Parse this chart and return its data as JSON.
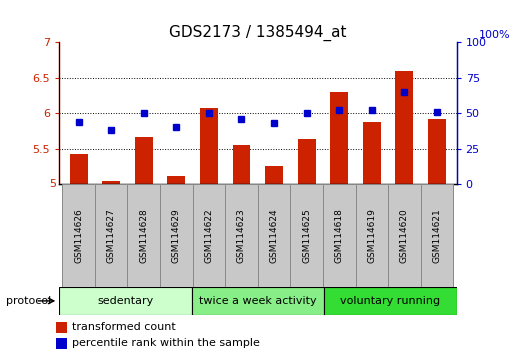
{
  "title": "GDS2173 / 1385494_at",
  "samples": [
    "GSM114626",
    "GSM114627",
    "GSM114628",
    "GSM114629",
    "GSM114622",
    "GSM114623",
    "GSM114624",
    "GSM114625",
    "GSM114618",
    "GSM114619",
    "GSM114620",
    "GSM114621"
  ],
  "red_values": [
    5.42,
    5.04,
    5.67,
    5.12,
    6.08,
    5.55,
    5.25,
    5.63,
    6.3,
    5.87,
    6.6,
    5.92
  ],
  "blue_values": [
    44,
    38,
    50,
    40,
    50,
    46,
    43,
    50,
    52,
    52,
    65,
    51
  ],
  "group_colors": [
    "#ccffcc",
    "#88ee88",
    "#33dd33"
  ],
  "group_labels": [
    "sedentary",
    "twice a week activity",
    "voluntary running"
  ],
  "group_starts": [
    0,
    4,
    8
  ],
  "group_ends": [
    4,
    8,
    12
  ],
  "ylim_left": [
    5.0,
    7.0
  ],
  "ylim_right": [
    0,
    100
  ],
  "yticks_left": [
    5.5,
    6.0,
    6.5,
    7.0
  ],
  "yticks_right": [
    0,
    25,
    50,
    75,
    100
  ],
  "ytick_labels_left": [
    "5.5",
    "6",
    "6.5",
    "7"
  ],
  "bar_color": "#cc2200",
  "dot_color": "#0000cc",
  "bar_bottom": 5.0,
  "bar_width": 0.55,
  "legend_items": [
    "transformed count",
    "percentile rank within the sample"
  ],
  "protocol_label": "protocol",
  "ylabel_left_color": "#cc2200",
  "ylabel_right_color": "#0000cc",
  "tick_label_size": 8,
  "title_fontsize": 11,
  "label_gray": "#c8c8c8",
  "label_border": "#888888"
}
